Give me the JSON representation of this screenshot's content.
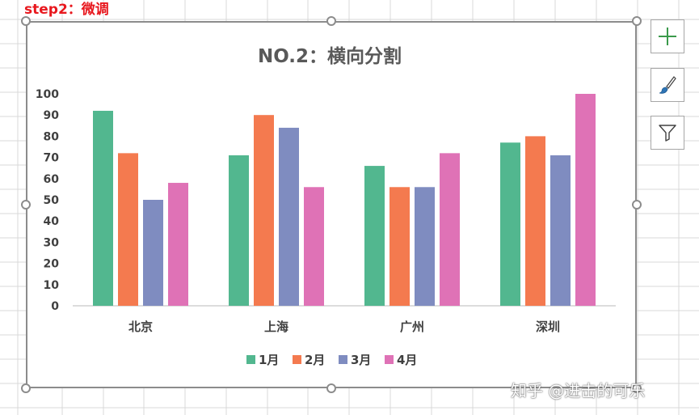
{
  "step_label": "step2：微调",
  "watermark": "知乎 @进击的可乐",
  "side_buttons": [
    {
      "icon": "plus-icon",
      "color": "#3a9a4b"
    },
    {
      "icon": "paintbrush-icon",
      "color": "#2e75b6"
    },
    {
      "icon": "filter-icon",
      "color": "#595959"
    }
  ],
  "colors": {
    "jan": "#52b78f",
    "feb": "#f47a4f",
    "mar": "#7f8cc0",
    "apr": "#df72b6",
    "selection_border": "#8c8c8c",
    "grid": "#d9d9d9"
  },
  "chart_data": {
    "type": "bar",
    "title": "NO.2：横向分割",
    "categories": [
      "北京",
      "上海",
      "广州",
      "深圳"
    ],
    "series": [
      {
        "name": "1月",
        "values": [
          92,
          71,
          66,
          77
        ]
      },
      {
        "name": "2月",
        "values": [
          72,
          90,
          56,
          80
        ]
      },
      {
        "name": "3月",
        "values": [
          50,
          84,
          56,
          71
        ]
      },
      {
        "name": "4月",
        "values": [
          58,
          56,
          72,
          100
        ]
      }
    ],
    "ylim": [
      0,
      100
    ],
    "yticks": [
      0,
      10,
      20,
      30,
      40,
      50,
      60,
      70,
      80,
      90,
      100
    ],
    "xlabel": "",
    "ylabel": "",
    "grid": false,
    "legend": "bottom"
  }
}
